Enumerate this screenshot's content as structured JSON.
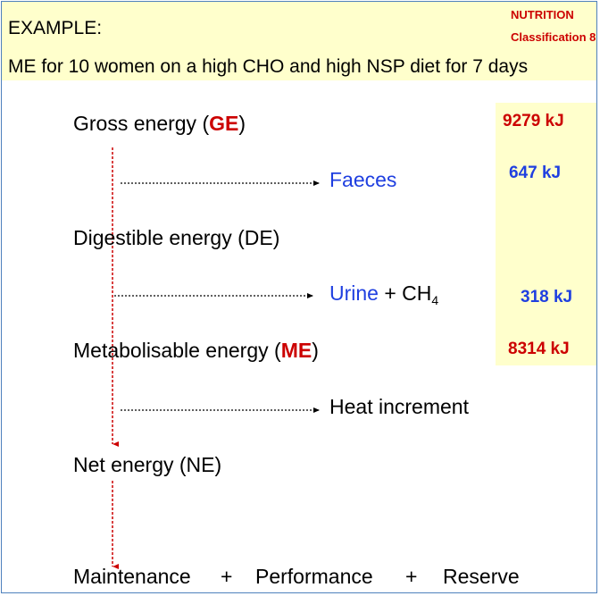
{
  "header": {
    "example_label": "EXAMPLE:",
    "subtitle": "ME for 10 women on a high CHO and high NSP diet for 7 days",
    "corner_line1": "NUTRITION",
    "corner_line2": "Classification 8"
  },
  "flow": {
    "gross": {
      "label": "Gross energy (",
      "abbr": "GE",
      "close": ")"
    },
    "faeces": "Faeces",
    "digestible": "Digestible energy (DE)",
    "urine": "Urine",
    "urine_plus": " + CH",
    "urine_sub": "4",
    "metabolisable": {
      "label": "Metabolisable energy (",
      "abbr": "ME",
      "close": ")"
    },
    "heat": "Heat increment",
    "net": "Net energy (NE)",
    "outputs": {
      "maintenance": "Maintenance",
      "plus1": "+",
      "performance": "Performance",
      "plus2": "+",
      "reserve": "Reserve"
    }
  },
  "values": {
    "ge": "9279 kJ",
    "faeces": "647 kJ",
    "urine": "318 kJ",
    "me": "8314 kJ"
  },
  "colors": {
    "header_bg": "#ffffcc",
    "accent_red": "#cc0000",
    "accent_blue": "#1f3fe0",
    "border": "#4f81bd"
  }
}
